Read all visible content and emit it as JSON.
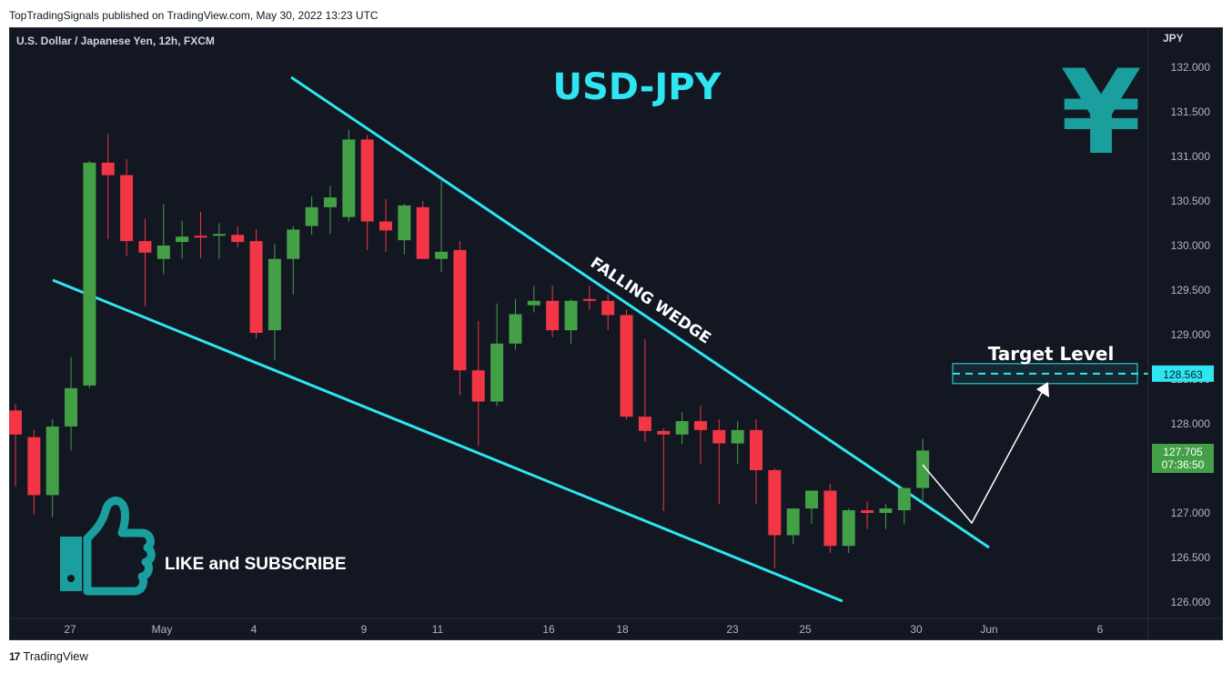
{
  "attribution": "TopTradingSignals published on TradingView.com, May 30, 2022 13:23 UTC",
  "symbol_label": "U.S. Dollar / Japanese Yen, 12h, FXCM",
  "title": "USD-JPY",
  "currency_unit": "JPY",
  "pattern_label": "FALLING WEDGE",
  "target_label": "Target Level",
  "cta_label": "LIKE and SUBSCRIBE",
  "yen_symbol": "¥",
  "footer_brand": "TradingView",
  "colors": {
    "background": "#131722",
    "up": "#43a047",
    "down": "#f23645",
    "wedge": "#2ee6f2",
    "title": "#2ee6f2",
    "icon": "#1a9e9e"
  },
  "chart_data": {
    "type": "candlestick",
    "ylim": [
      125.87,
      132.35
    ],
    "y_ticks": [
      "132.000",
      "131.500",
      "131.000",
      "130.500",
      "130.000",
      "129.500",
      "129.000",
      "128.500",
      "128.000",
      "127.500",
      "127.000",
      "126.500",
      "126.000"
    ],
    "x_ticks": [
      "27",
      "May",
      "4",
      "9",
      "11",
      "16",
      "18",
      "23",
      "25",
      "30",
      "Jun",
      "6"
    ],
    "target_price": "128.563",
    "last_price": "127.705",
    "countdown": "07:36:50",
    "candles": [
      {
        "o": 128.15,
        "h": 128.22,
        "l": 127.3,
        "c": 127.88
      },
      {
        "o": 127.85,
        "h": 127.93,
        "l": 126.98,
        "c": 127.2
      },
      {
        "o": 127.2,
        "h": 128.05,
        "l": 126.95,
        "c": 127.97
      },
      {
        "o": 127.97,
        "h": 128.75,
        "l": 127.7,
        "c": 128.4
      },
      {
        "o": 128.43,
        "h": 130.95,
        "l": 128.4,
        "c": 130.93
      },
      {
        "o": 130.93,
        "h": 131.25,
        "l": 130.07,
        "c": 130.79
      },
      {
        "o": 130.79,
        "h": 130.97,
        "l": 129.88,
        "c": 130.05
      },
      {
        "o": 130.05,
        "h": 130.3,
        "l": 129.32,
        "c": 129.92
      },
      {
        "o": 129.85,
        "h": 130.47,
        "l": 129.68,
        "c": 130.0
      },
      {
        "o": 130.04,
        "h": 130.28,
        "l": 129.85,
        "c": 130.1
      },
      {
        "o": 130.11,
        "h": 130.38,
        "l": 129.86,
        "c": 130.1
      },
      {
        "o": 130.12,
        "h": 130.25,
        "l": 129.85,
        "c": 130.13
      },
      {
        "o": 130.12,
        "h": 130.22,
        "l": 129.98,
        "c": 130.04
      },
      {
        "o": 130.05,
        "h": 130.18,
        "l": 128.96,
        "c": 129.02
      },
      {
        "o": 129.05,
        "h": 130.02,
        "l": 128.72,
        "c": 129.85
      },
      {
        "o": 129.85,
        "h": 130.22,
        "l": 129.45,
        "c": 130.18
      },
      {
        "o": 130.22,
        "h": 130.55,
        "l": 130.12,
        "c": 130.43
      },
      {
        "o": 130.43,
        "h": 130.67,
        "l": 130.13,
        "c": 130.54
      },
      {
        "o": 130.32,
        "h": 131.3,
        "l": 130.27,
        "c": 131.19
      },
      {
        "o": 131.19,
        "h": 131.24,
        "l": 129.95,
        "c": 130.27
      },
      {
        "o": 130.27,
        "h": 130.52,
        "l": 129.93,
        "c": 130.17
      },
      {
        "o": 130.06,
        "h": 130.47,
        "l": 129.9,
        "c": 130.45
      },
      {
        "o": 130.43,
        "h": 130.5,
        "l": 129.9,
        "c": 129.85
      },
      {
        "o": 129.85,
        "h": 130.75,
        "l": 129.7,
        "c": 129.93
      },
      {
        "o": 129.95,
        "h": 130.05,
        "l": 128.32,
        "c": 128.6
      },
      {
        "o": 128.6,
        "h": 129.15,
        "l": 127.75,
        "c": 128.25
      },
      {
        "o": 128.25,
        "h": 129.35,
        "l": 128.2,
        "c": 128.9
      },
      {
        "o": 128.9,
        "h": 129.4,
        "l": 128.83,
        "c": 129.23
      },
      {
        "o": 129.33,
        "h": 129.55,
        "l": 129.25,
        "c": 129.38
      },
      {
        "o": 129.38,
        "h": 129.55,
        "l": 128.97,
        "c": 129.05
      },
      {
        "o": 129.05,
        "h": 129.4,
        "l": 128.9,
        "c": 129.38
      },
      {
        "o": 129.4,
        "h": 129.55,
        "l": 129.28,
        "c": 129.38
      },
      {
        "o": 129.38,
        "h": 129.45,
        "l": 129.05,
        "c": 129.22
      },
      {
        "o": 129.22,
        "h": 129.28,
        "l": 128.05,
        "c": 128.08
      },
      {
        "o": 128.08,
        "h": 128.95,
        "l": 127.8,
        "c": 127.92
      },
      {
        "o": 127.92,
        "h": 127.95,
        "l": 127.02,
        "c": 127.88
      },
      {
        "o": 127.88,
        "h": 128.13,
        "l": 127.77,
        "c": 128.03
      },
      {
        "o": 128.03,
        "h": 128.2,
        "l": 127.55,
        "c": 127.93
      },
      {
        "o": 127.93,
        "h": 128.05,
        "l": 127.1,
        "c": 127.78
      },
      {
        "o": 127.78,
        "h": 128.03,
        "l": 127.55,
        "c": 127.93
      },
      {
        "o": 127.93,
        "h": 128.05,
        "l": 127.1,
        "c": 127.48
      },
      {
        "o": 127.48,
        "h": 127.5,
        "l": 126.38,
        "c": 126.75
      },
      {
        "o": 126.75,
        "h": 127.05,
        "l": 126.65,
        "c": 127.05
      },
      {
        "o": 127.05,
        "h": 127.25,
        "l": 126.88,
        "c": 127.25
      },
      {
        "o": 127.25,
        "h": 127.33,
        "l": 126.55,
        "c": 126.63
      },
      {
        "o": 126.63,
        "h": 127.05,
        "l": 126.55,
        "c": 127.03
      },
      {
        "o": 127.03,
        "h": 127.13,
        "l": 126.82,
        "c": 127.0
      },
      {
        "o": 127.0,
        "h": 127.1,
        "l": 126.82,
        "c": 127.05
      },
      {
        "o": 127.03,
        "h": 127.28,
        "l": 126.87,
        "c": 127.28
      },
      {
        "o": 127.28,
        "h": 127.83,
        "l": 127.12,
        "c": 127.7
      }
    ]
  }
}
